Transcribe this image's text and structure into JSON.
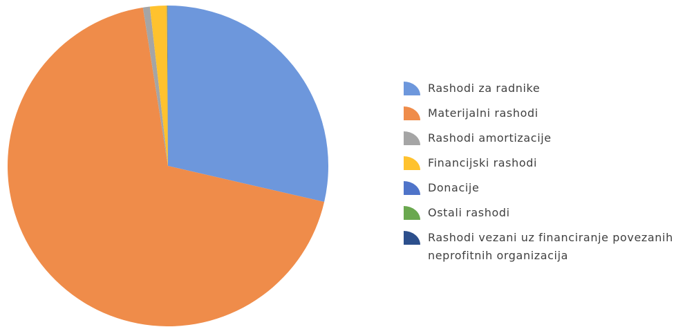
{
  "chart_data": {
    "type": "pie",
    "categories": [
      "Rashodi za radnike",
      "Materijalni rashodi",
      "Rashodi amortizacije",
      "Financijski rashodi",
      "Donacije",
      "Ostali rashodi",
      "Rashodi vezani uz financiranje povezanih neprofitnih organizacija"
    ],
    "values": [
      28.6,
      68.9,
      0.7,
      1.7,
      0.05,
      0.03,
      0.02
    ],
    "colors": [
      "#6d97dc",
      "#ef8c4a",
      "#a5a5a5",
      "#ffc22e",
      "#4f74c9",
      "#6aa84f",
      "#2c4f8c"
    ],
    "legend": "right"
  }
}
